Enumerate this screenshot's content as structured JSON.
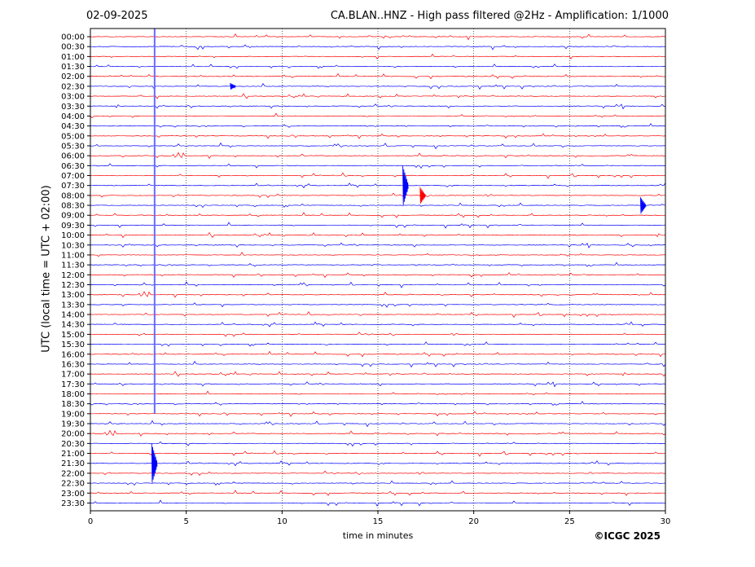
{
  "header": {
    "date": "02-09-2025",
    "title": "CA.BLAN..HNZ - High pass filtered @2Hz - Amplification: 1/1000"
  },
  "footer": {
    "copyright": "©ICGC 2025"
  },
  "colors": {
    "even_trace": "#ff0000",
    "odd_trace": "#0000ff",
    "grid": "#000000"
  },
  "chart_data": {
    "type": "line",
    "title": "CA.BLAN..HNZ - High pass filtered @2Hz - Amplification: 1/1000",
    "xlabel": "time in minutes",
    "ylabel": "UTC (local time = UTC + 02:00)",
    "xlim": [
      0,
      30
    ],
    "x_ticks": [
      0,
      5,
      10,
      15,
      20,
      25,
      30
    ],
    "grid": "vertical dotted lines at every 5 minutes",
    "trace_colors": "alternating red / blue per row",
    "rows": [
      "00:00",
      "00:30",
      "01:00",
      "01:30",
      "02:00",
      "02:30",
      "03:00",
      "03:30",
      "04:00",
      "04:30",
      "05:00",
      "05:30",
      "06:00",
      "06:30",
      "07:00",
      "07:30",
      "08:00",
      "08:30",
      "09:00",
      "09:30",
      "10:00",
      "10:30",
      "11:00",
      "11:30",
      "12:00",
      "12:30",
      "13:00",
      "13:30",
      "14:00",
      "14:30",
      "15:00",
      "15:30",
      "16:00",
      "16:30",
      "17:00",
      "17:30",
      "18:00",
      "18:30",
      "19:00",
      "19:30",
      "20:00",
      "20:30",
      "21:00",
      "21:30",
      "22:00",
      "22:30",
      "23:00",
      "23:30"
    ],
    "events": [
      {
        "row": "02:30",
        "minute": 7.3,
        "note": "step"
      },
      {
        "row": "07:30",
        "minute": 16.3,
        "note": "spike"
      },
      {
        "row": "08:00",
        "minute": 17.2,
        "note": "burst"
      },
      {
        "row": "08:30",
        "minute": 28.7,
        "note": "burst"
      },
      {
        "row": "21:30",
        "minute": 3.2,
        "note": "spike"
      }
    ],
    "continuous_feature": {
      "minute": 3.35,
      "from_row": "00:00",
      "to_row": "19:00"
    }
  }
}
